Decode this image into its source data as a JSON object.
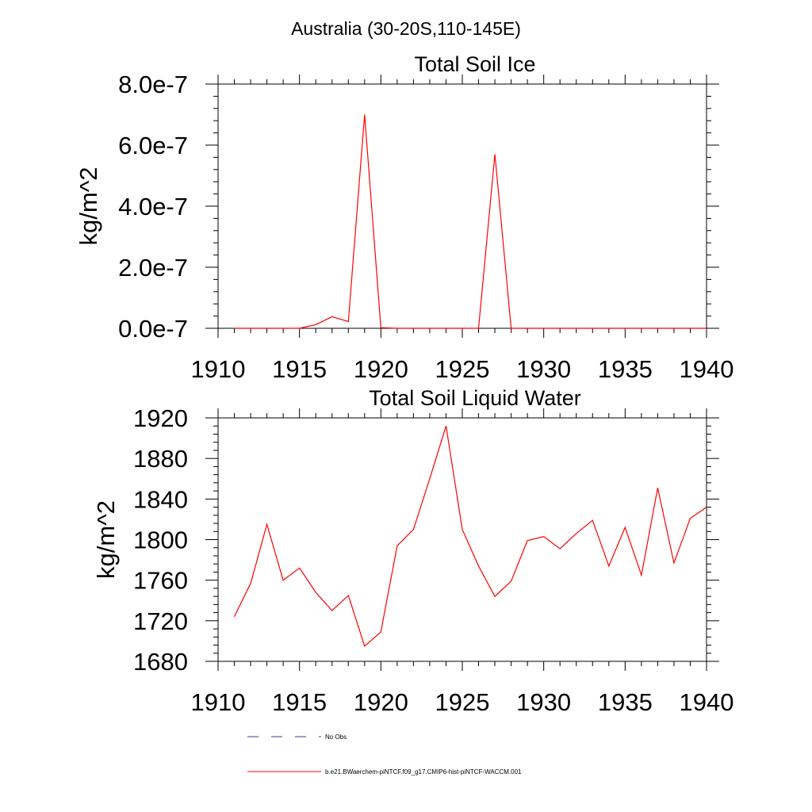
{
  "figure": {
    "title": "Australia (30-20S,110-145E)"
  },
  "chart_data": [
    {
      "type": "line",
      "title": "Total Soil Ice",
      "xlabel": "",
      "ylabel": "kg/m^2",
      "xlim": [
        1910,
        1940
      ],
      "ylim": [
        0,
        8e-07
      ],
      "xticks": [
        "1910",
        "1915",
        "1920",
        "1925",
        "1930",
        "1935",
        "1940"
      ],
      "xtick_values": [
        1910,
        1915,
        1920,
        1925,
        1930,
        1935,
        1940
      ],
      "yticks": [
        "0.0e-7",
        "2.0e-7",
        "4.0e-7",
        "6.0e-7",
        "8.0e-7"
      ],
      "ytick_values": [
        0,
        2e-07,
        4e-07,
        6e-07,
        8e-07
      ],
      "series": [
        {
          "name": "b.e21.BWaerchem-piNTCF.f09_g17.CMIP6-hist-piNTCF-WACCM.001",
          "color": "#ff0000",
          "x": [
            1911,
            1912,
            1913,
            1914,
            1915,
            1916,
            1917,
            1918,
            1919,
            1920,
            1921,
            1922,
            1923,
            1924,
            1925,
            1926,
            1927,
            1928,
            1929,
            1930,
            1931,
            1932,
            1933,
            1934,
            1935,
            1936,
            1937,
            1938,
            1939,
            1940
          ],
          "y": [
            0,
            0,
            0,
            0,
            0,
            1.2e-08,
            3.8e-08,
            2.2e-08,
            7e-07,
            2e-09,
            0,
            0,
            0,
            0,
            0,
            0,
            5.7e-07,
            0,
            0,
            0,
            0,
            0,
            0,
            0,
            0,
            0,
            0,
            0,
            0,
            0
          ]
        }
      ]
    },
    {
      "type": "line",
      "title": "Total Soil Liquid Water",
      "xlabel": "",
      "ylabel": "kg/m^2",
      "xlim": [
        1910,
        1940
      ],
      "ylim": [
        1680,
        1920
      ],
      "xticks": [
        "1910",
        "1915",
        "1920",
        "1925",
        "1930",
        "1935",
        "1940"
      ],
      "xtick_values": [
        1910,
        1915,
        1920,
        1925,
        1930,
        1935,
        1940
      ],
      "yticks": [
        "1680",
        "1720",
        "1760",
        "1800",
        "1840",
        "1880",
        "1920"
      ],
      "ytick_values": [
        1680,
        1720,
        1760,
        1800,
        1840,
        1880,
        1920
      ],
      "series": [
        {
          "name": "b.e21.BWaerchem-piNTCF.f09_g17.CMIP6-hist-piNTCF-WACCM.001",
          "color": "#ff0000",
          "x": [
            1911,
            1912,
            1913,
            1914,
            1915,
            1916,
            1917,
            1918,
            1919,
            1920,
            1921,
            1922,
            1923,
            1924,
            1925,
            1926,
            1927,
            1928,
            1929,
            1930,
            1931,
            1932,
            1933,
            1934,
            1935,
            1936,
            1937,
            1938,
            1939,
            1940
          ],
          "y": [
            1724,
            1757,
            1815,
            1760,
            1772,
            1748,
            1730,
            1745,
            1695,
            1709,
            1794,
            1810,
            1860,
            1912,
            1810,
            1774,
            1744,
            1759,
            1799,
            1803,
            1791,
            1806,
            1819,
            1774,
            1812,
            1765,
            1851,
            1777,
            1821,
            1832
          ]
        }
      ]
    }
  ],
  "legend": {
    "items": [
      {
        "label": "No Obs",
        "color": "#334488",
        "dash": "dashed"
      },
      {
        "label": "b.e21.BWaerchem-piNTCF.f09_g17.CMIP6-hist-piNTCF-WACCM.001",
        "color": "#ff0000",
        "dash": "solid"
      }
    ]
  }
}
